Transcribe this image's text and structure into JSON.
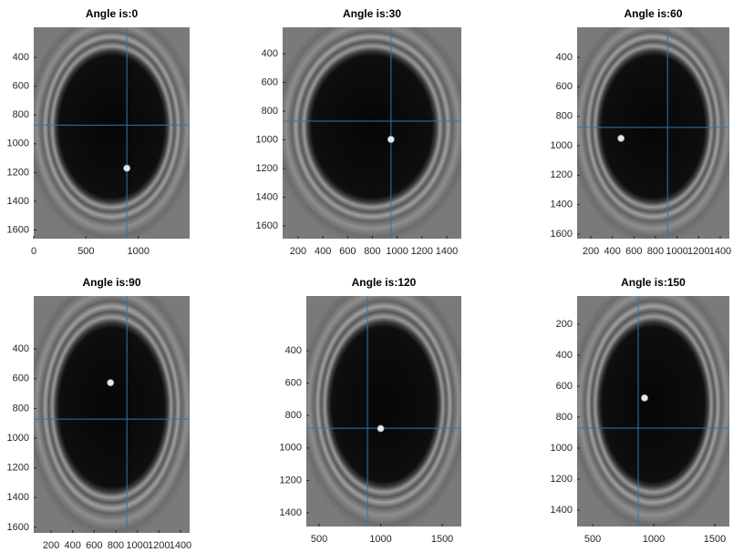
{
  "chart_data": [
    {
      "type": "image",
      "title": "Angle is:0",
      "xlim": [
        0,
        1490
      ],
      "xticks": [
        0,
        500,
        1000
      ],
      "ylim": [
        1660,
        190
      ],
      "yticks": [
        400,
        600,
        800,
        1000,
        1200,
        1400,
        1600
      ],
      "crosshair": {
        "x": 890,
        "y": 870
      },
      "spot": {
        "x": 890,
        "y": 1170
      },
      "crosshair_color": "#2a78b4"
    },
    {
      "type": "image",
      "title": "Angle is:30",
      "xlim": [
        75,
        1518
      ],
      "xticks": [
        200,
        400,
        600,
        800,
        1000,
        1200,
        1400
      ],
      "ylim": [
        1689,
        216
      ],
      "yticks": [
        400,
        600,
        800,
        1000,
        1200,
        1400,
        1600
      ],
      "crosshair": {
        "x": 950,
        "y": 870
      },
      "spot": {
        "x": 950,
        "y": 997
      },
      "crosshair_color": "#2a78b4"
    },
    {
      "type": "image",
      "title": "Angle is:60",
      "xlim": [
        73,
        1485
      ],
      "xticks": [
        200,
        400,
        600,
        800,
        1000,
        1200,
        1400
      ],
      "ylim": [
        1631,
        196
      ],
      "yticks": [
        400,
        600,
        800,
        1000,
        1200,
        1400,
        1600
      ],
      "crosshair": {
        "x": 912,
        "y": 876
      },
      "spot": {
        "x": 480,
        "y": 950
      },
      "crosshair_color": "#2a78b4"
    },
    {
      "type": "image",
      "title": "Angle is:90",
      "xlim": [
        39,
        1485
      ],
      "xticks": [
        200,
        400,
        600,
        800,
        1000,
        1200,
        1400
      ],
      "ylim": [
        1637,
        44
      ],
      "yticks": [
        400,
        600,
        800,
        1000,
        1200,
        1400,
        1600
      ],
      "crosshair": {
        "x": 903,
        "y": 872
      },
      "spot": {
        "x": 751,
        "y": 627
      },
      "crosshair_color": "#2a78b4"
    },
    {
      "type": "image",
      "title": "Angle is:120",
      "xlim": [
        396,
        1655
      ],
      "xticks": [
        500,
        1000,
        1500
      ],
      "ylim": [
        1484,
        63
      ],
      "yticks": [
        400,
        600,
        800,
        1000,
        1200,
        1400
      ],
      "crosshair": {
        "x": 893,
        "y": 878
      },
      "spot": {
        "x": 1000,
        "y": 880
      },
      "crosshair_color": "#2a78b4"
    },
    {
      "type": "image",
      "title": "Angle is:150",
      "xlim": [
        373,
        1619
      ],
      "xticks": [
        500,
        1000,
        1500
      ],
      "ylim": [
        1506,
        18
      ],
      "yticks": [
        200,
        400,
        600,
        800,
        1000,
        1200,
        1400
      ],
      "crosshair": {
        "x": 873,
        "y": 871
      },
      "spot": {
        "x": 925,
        "y": 676
      },
      "crosshair_color": "#2a78b4"
    }
  ]
}
